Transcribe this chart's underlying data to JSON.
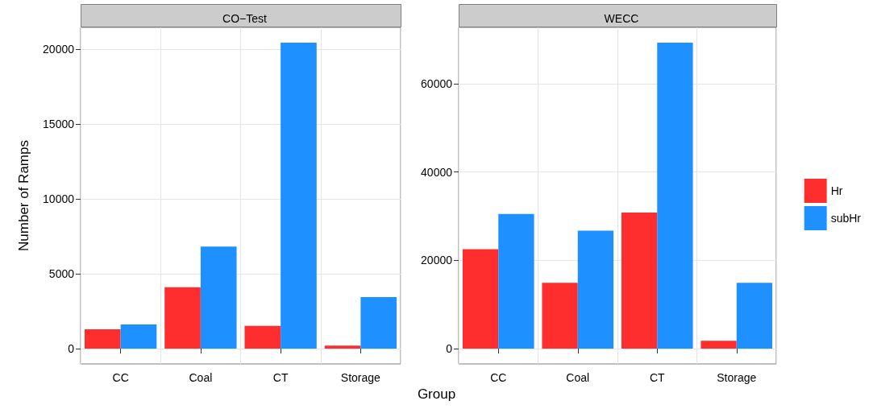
{
  "chart_data": [
    {
      "type": "bar",
      "title": "CO−Test",
      "ylabel": "Number of Ramps",
      "xlabel": "Group",
      "categories": [
        "CC",
        "Coal",
        "CT",
        "Storage"
      ],
      "series": [
        {
          "color": "#ff2e2e",
          "values": [
            1290,
            4100,
            1520,
            200
          ]
        },
        {
          "color": "#1e90ff",
          "values": [
            1610,
            6810,
            20430,
            3440
          ]
        }
      ],
      "ylim": [
        -1021,
        21450
      ],
      "yticks": [
        0,
        5000,
        10000,
        15000,
        20000
      ],
      "grid": true,
      "legend": false
    },
    {
      "type": "bar",
      "title": "WECC",
      "categories": [
        "CC",
        "Coal",
        "CT",
        "Storage"
      ],
      "series": [
        {
          "name": "Hr",
          "color": "#ff2e2e",
          "values": [
            22500,
            14900,
            30800,
            1800
          ]
        },
        {
          "name": "subHr",
          "color": "#1e90ff",
          "values": [
            30500,
            26700,
            69300,
            14900
          ]
        }
      ],
      "ylim": [
        -3465,
        72765
      ],
      "yticks": [
        0,
        20000,
        40000,
        60000
      ],
      "grid": true,
      "legend": "right"
    }
  ]
}
